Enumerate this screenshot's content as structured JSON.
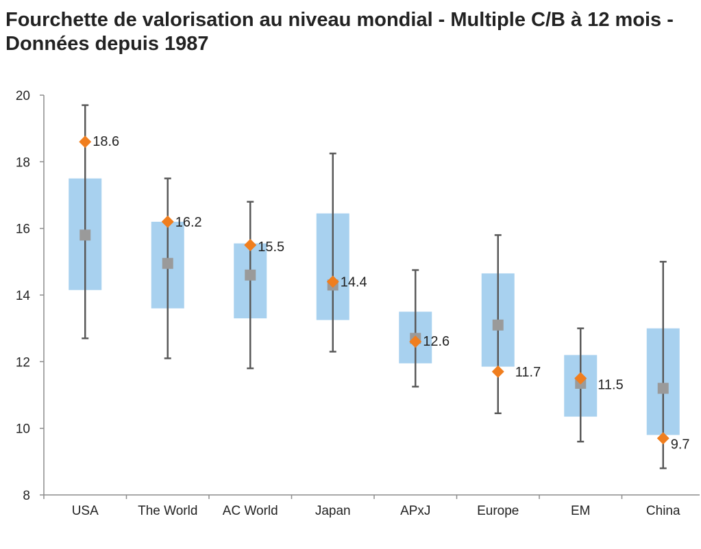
{
  "title": "Fourchette de valorisation au niveau mondial - Multiple C/B à 12 mois - Données depuis 1987",
  "colors": {
    "box": "#a8d1ef",
    "whisker": "#595959",
    "median": "#9a9a9a",
    "current": "#f07e1e",
    "axis": "#8c8c8c",
    "text": "#222222"
  },
  "chart_data": {
    "type": "box",
    "title": "Fourchette de valorisation au niveau mondial - Multiple C/B à 12 mois - Données depuis 1987",
    "xlabel": "",
    "ylabel": "",
    "ylim": [
      8,
      20
    ],
    "yticks": [
      8,
      10,
      12,
      14,
      16,
      18,
      20
    ],
    "grid": false,
    "legend": "none",
    "categories": [
      "USA",
      "The World",
      "AC World",
      "Japan",
      "APxJ",
      "Europe",
      "EM",
      "China"
    ],
    "whisker_low": [
      12.7,
      12.1,
      11.8,
      12.3,
      11.25,
      10.45,
      9.6,
      8.8
    ],
    "whisker_high": [
      19.7,
      17.5,
      16.8,
      18.25,
      14.75,
      15.8,
      13.0,
      15.0
    ],
    "box_low": [
      14.15,
      13.6,
      13.3,
      13.25,
      11.95,
      11.85,
      10.35,
      9.8
    ],
    "box_high": [
      17.5,
      16.2,
      15.55,
      16.45,
      13.5,
      14.65,
      12.2,
      13.0
    ],
    "median": [
      15.8,
      14.95,
      14.6,
      14.3,
      12.7,
      13.1,
      11.35,
      11.2
    ],
    "current": [
      18.6,
      16.2,
      15.5,
      14.4,
      12.6,
      11.7,
      11.5,
      9.7
    ],
    "current_labels": [
      "18.6",
      "16.2",
      "15.5",
      "14.4",
      "12.6",
      "11.7",
      "11.5",
      "9.7"
    ]
  }
}
